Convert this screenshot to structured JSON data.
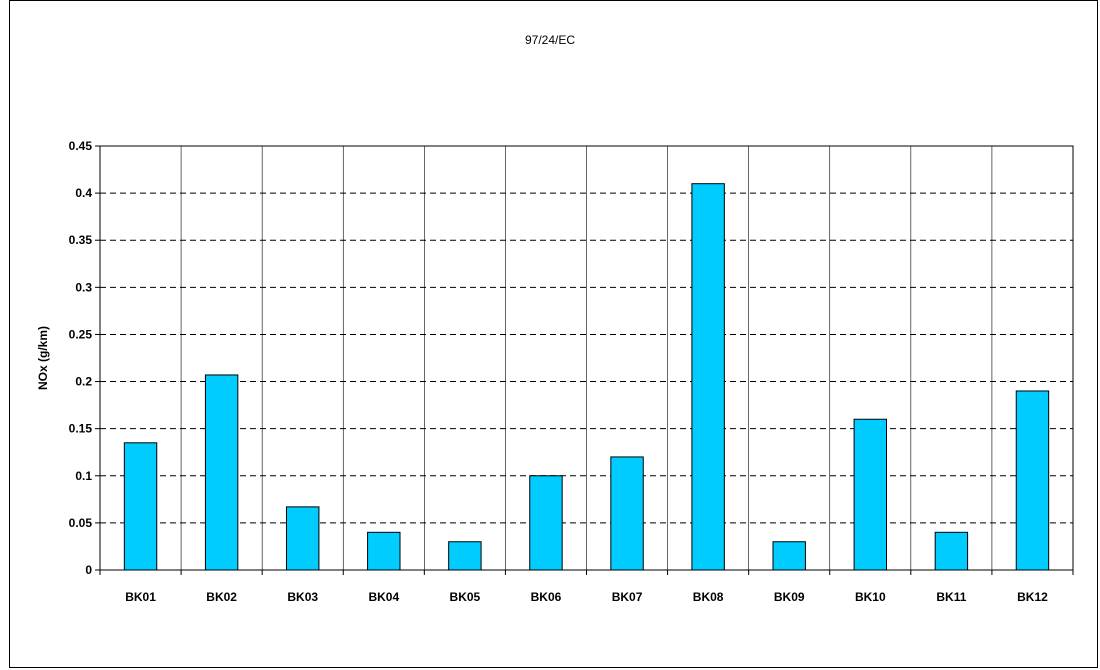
{
  "chart_data": {
    "type": "bar",
    "title": "97/24/EC",
    "xlabel": "",
    "ylabel": "NOx (g/km)",
    "categories": [
      "BK01",
      "BK02",
      "BK03",
      "BK04",
      "BK05",
      "BK06",
      "BK07",
      "BK08",
      "BK09",
      "BK10",
      "BK11",
      "BK12"
    ],
    "values": [
      0.135,
      0.207,
      0.067,
      0.04,
      0.03,
      0.1,
      0.12,
      0.41,
      0.03,
      0.16,
      0.04,
      0.19
    ],
    "ylim": [
      0,
      0.45
    ],
    "yticks": [
      "0",
      "0.05",
      "0.1",
      "0.15",
      "0.2",
      "0.25",
      "0.3",
      "0.35",
      "0.4",
      "0.45"
    ],
    "grid": "horizontal dashed, vertical solid category separators",
    "legend": "none",
    "bar_color": "#00CCFF"
  }
}
